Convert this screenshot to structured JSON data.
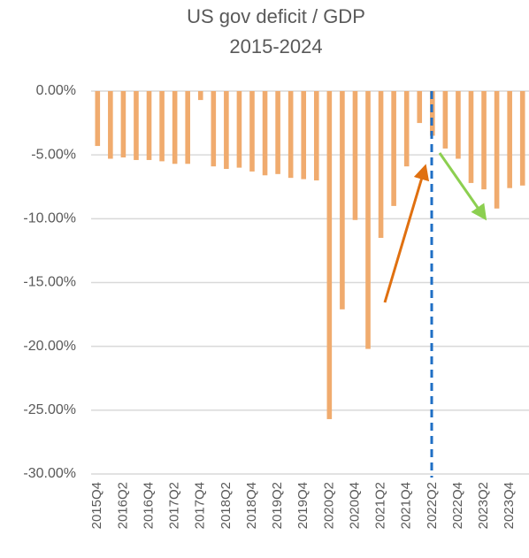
{
  "chart_data": {
    "type": "bar",
    "title": "US gov deficit / GDP",
    "subtitle": "2015-2024",
    "categories": [
      "2015Q4",
      null,
      "2016Q2",
      null,
      "2016Q4",
      null,
      "2017Q2",
      null,
      "2017Q4",
      null,
      "2018Q2",
      null,
      "2018Q4",
      null,
      "2019Q2",
      null,
      "2019Q4",
      null,
      "2020Q2",
      null,
      "2020Q4",
      null,
      "2021Q2",
      null,
      "2021Q4",
      null,
      "2022Q2",
      null,
      "2022Q4",
      null,
      "2023Q2",
      null,
      "2023Q4",
      null
    ],
    "values": [
      -4.3,
      -5.3,
      -5.2,
      -5.4,
      -5.4,
      -5.5,
      -5.7,
      -5.7,
      -0.7,
      -5.9,
      -6.1,
      -6.0,
      -6.3,
      -6.6,
      -6.5,
      -6.8,
      -6.9,
      -7.0,
      -25.7,
      -17.1,
      -10.1,
      -20.2,
      -11.5,
      -9.0,
      -5.9,
      -2.5,
      -3.5,
      -4.5,
      -5.3,
      -7.2,
      -7.7,
      -9.2,
      -7.6,
      -7.4
    ],
    "color": "#f0ab6e",
    "ylim": [
      -30,
      0
    ],
    "yticks": [
      {
        "value": 0,
        "label": "0.00%"
      },
      {
        "value": -5,
        "label": "-5.00%"
      },
      {
        "value": -10,
        "label": "-10.00%"
      },
      {
        "value": -15,
        "label": "-15.00%"
      },
      {
        "value": -20,
        "label": "-20.00%"
      },
      {
        "value": -25,
        "label": "-25.00%"
      },
      {
        "value": -30,
        "label": "-30.00%"
      }
    ],
    "grid": true
  }
}
